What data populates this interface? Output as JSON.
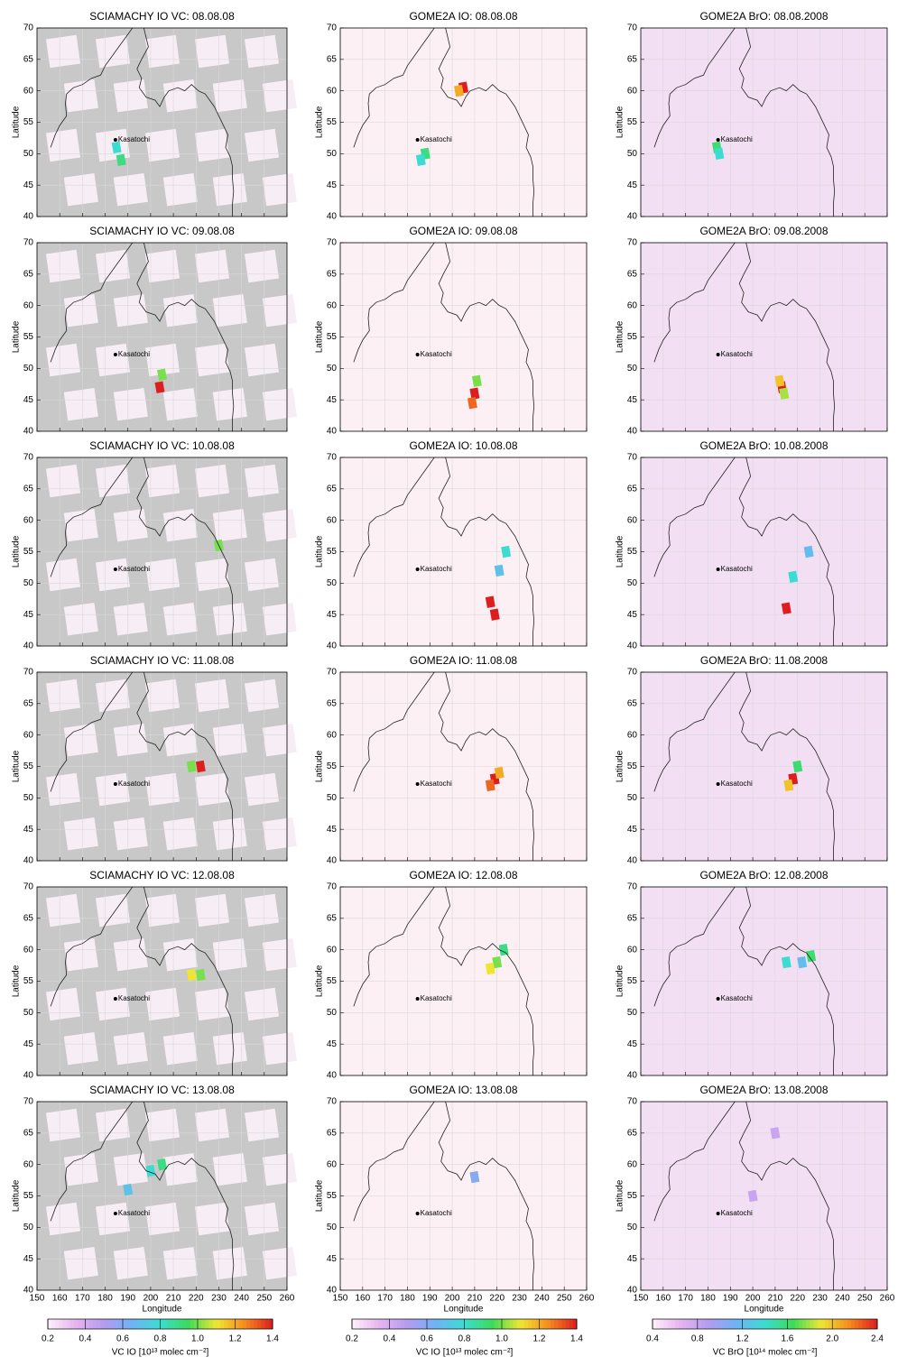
{
  "chart_data": [
    {
      "type": "map",
      "title": "SCIAMACHY IO VC: 08.08.08",
      "ylabel": "Latitude",
      "annotation": "Kasatochi",
      "background": "#c8c8c8",
      "xlim": [
        150,
        260
      ],
      "ylim": [
        40,
        70
      ],
      "xticks": [
        150,
        160,
        170,
        180,
        190,
        200,
        210,
        220,
        230,
        240,
        250,
        260
      ],
      "yticks": [
        40,
        45,
        50,
        55,
        60,
        65,
        70
      ],
      "hotspots": {
        "x": [
          185,
          187
        ],
        "y": [
          51,
          49
        ],
        "values": [
          0.8,
          0.9
        ]
      }
    },
    {
      "type": "map",
      "title": "GOME2A IO: 08.08.08",
      "ylabel": "Latitude",
      "annotation": "Kasatochi",
      "background": "#fdf0f4",
      "xlim": [
        150,
        260
      ],
      "ylim": [
        40,
        70
      ],
      "xticks": [
        150,
        160,
        170,
        180,
        190,
        200,
        210,
        220,
        230,
        240,
        250,
        260
      ],
      "yticks": [
        40,
        45,
        50,
        55,
        60,
        65,
        70
      ],
      "hotspots": {
        "x": [
          188,
          186,
          205,
          203
        ],
        "y": [
          50,
          49,
          60.5,
          60
        ],
        "values": [
          0.9,
          0.8,
          1.4,
          1.2
        ]
      }
    },
    {
      "type": "map",
      "title": "GOME2A BrO: 08.08.2008",
      "ylabel": "Latitude",
      "annotation": "Kasatochi",
      "background": "#f3dff3",
      "xlim": [
        150,
        260
      ],
      "ylim": [
        40,
        70
      ],
      "xticks": [
        150,
        160,
        170,
        180,
        190,
        200,
        210,
        220,
        230,
        240,
        250,
        260
      ],
      "yticks": [
        40,
        45,
        50,
        55,
        60,
        65,
        70
      ],
      "hotspots": {
        "x": [
          184,
          185
        ],
        "y": [
          51,
          50
        ],
        "values": [
          1.6,
          1.4
        ]
      }
    },
    {
      "type": "map",
      "title": "SCIAMACHY IO VC: 09.08.08",
      "ylabel": "Latitude",
      "annotation": "Kasatochi",
      "background": "#c8c8c8",
      "xlim": [
        150,
        260
      ],
      "ylim": [
        40,
        70
      ],
      "xticks": [
        150,
        160,
        170,
        180,
        190,
        200,
        210,
        220,
        230,
        240,
        250,
        260
      ],
      "yticks": [
        40,
        45,
        50,
        55,
        60,
        65,
        70
      ],
      "hotspots": {
        "x": [
          204,
          205
        ],
        "y": [
          47,
          49
        ],
        "values": [
          1.4,
          1.0
        ]
      }
    },
    {
      "type": "map",
      "title": "GOME2A IO: 09.08.08",
      "ylabel": "Latitude",
      "annotation": "Kasatochi",
      "background": "#fdf0f4",
      "xlim": [
        150,
        260
      ],
      "ylim": [
        40,
        70
      ],
      "xticks": [
        150,
        160,
        170,
        180,
        190,
        200,
        210,
        220,
        230,
        240,
        250,
        260
      ],
      "yticks": [
        40,
        45,
        50,
        55,
        60,
        65,
        70
      ],
      "hotspots": {
        "x": [
          210,
          211,
          209
        ],
        "y": [
          46,
          48,
          44.5
        ],
        "values": [
          1.4,
          1.0,
          1.3
        ]
      }
    },
    {
      "type": "map",
      "title": "GOME2A BrO: 09.08.2008",
      "ylabel": "Latitude",
      "annotation": "Kasatochi",
      "background": "#f3dff3",
      "xlim": [
        150,
        260
      ],
      "ylim": [
        40,
        70
      ],
      "xticks": [
        150,
        160,
        170,
        180,
        190,
        200,
        210,
        220,
        230,
        240,
        250,
        260
      ],
      "yticks": [
        40,
        45,
        50,
        55,
        60,
        65,
        70
      ],
      "hotspots": {
        "x": [
          213,
          212,
          214
        ],
        "y": [
          47,
          48,
          46
        ],
        "values": [
          2.4,
          2.0,
          1.8
        ]
      }
    },
    {
      "type": "map",
      "title": "SCIAMACHY IO VC: 10.08.08",
      "ylabel": "Latitude",
      "annotation": "Kasatochi",
      "background": "#c8c8c8",
      "xlim": [
        150,
        260
      ],
      "ylim": [
        40,
        70
      ],
      "xticks": [
        150,
        160,
        170,
        180,
        190,
        200,
        210,
        220,
        230,
        240,
        250,
        260
      ],
      "yticks": [
        40,
        45,
        50,
        55,
        60,
        65,
        70
      ],
      "hotspots": {
        "x": [
          230
        ],
        "y": [
          56
        ],
        "values": [
          1.0
        ]
      }
    },
    {
      "type": "map",
      "title": "GOME2A IO: 10.08.08",
      "ylabel": "Latitude",
      "annotation": "Kasatochi",
      "background": "#fdf0f4",
      "xlim": [
        150,
        260
      ],
      "ylim": [
        40,
        70
      ],
      "xticks": [
        150,
        160,
        170,
        180,
        190,
        200,
        210,
        220,
        230,
        240,
        250,
        260
      ],
      "yticks": [
        40,
        45,
        50,
        55,
        60,
        65,
        70
      ],
      "hotspots": {
        "x": [
          217,
          219,
          224,
          221
        ],
        "y": [
          47,
          45,
          55,
          52
        ],
        "values": [
          1.4,
          1.4,
          0.8,
          0.7
        ]
      }
    },
    {
      "type": "map",
      "title": "GOME2A BrO: 10.08.2008",
      "ylabel": "Latitude",
      "annotation": "Kasatochi",
      "background": "#f3dff3",
      "xlim": [
        150,
        260
      ],
      "ylim": [
        40,
        70
      ],
      "xticks": [
        150,
        160,
        170,
        180,
        190,
        200,
        210,
        220,
        230,
        240,
        250,
        260
      ],
      "yticks": [
        40,
        45,
        50,
        55,
        60,
        65,
        70
      ],
      "hotspots": {
        "x": [
          215,
          218,
          225
        ],
        "y": [
          46,
          51,
          55
        ],
        "values": [
          2.4,
          1.4,
          1.2
        ]
      }
    },
    {
      "type": "map",
      "title": "SCIAMACHY IO VC: 11.08.08",
      "ylabel": "Latitude",
      "annotation": "Kasatochi",
      "background": "#c8c8c8",
      "xlim": [
        150,
        260
      ],
      "ylim": [
        40,
        70
      ],
      "xticks": [
        150,
        160,
        170,
        180,
        190,
        200,
        210,
        220,
        230,
        240,
        250,
        260
      ],
      "yticks": [
        40,
        45,
        50,
        55,
        60,
        65,
        70
      ],
      "hotspots": {
        "x": [
          222,
          218
        ],
        "y": [
          55,
          55
        ],
        "values": [
          1.4,
          1.0
        ]
      }
    },
    {
      "type": "map",
      "title": "GOME2A IO: 11.08.08",
      "ylabel": "Latitude",
      "annotation": "Kasatochi",
      "background": "#fdf0f4",
      "xlim": [
        150,
        260
      ],
      "ylim": [
        40,
        70
      ],
      "xticks": [
        150,
        160,
        170,
        180,
        190,
        200,
        210,
        220,
        230,
        240,
        250,
        260
      ],
      "yticks": [
        40,
        45,
        50,
        55,
        60,
        65,
        70
      ],
      "hotspots": {
        "x": [
          219,
          217,
          221
        ],
        "y": [
          53,
          52,
          54
        ],
        "values": [
          1.4,
          1.3,
          1.2
        ]
      }
    },
    {
      "type": "map",
      "title": "GOME2A BrO: 11.08.2008",
      "ylabel": "Latitude",
      "annotation": "Kasatochi",
      "background": "#f3dff3",
      "xlim": [
        150,
        260
      ],
      "ylim": [
        40,
        70
      ],
      "xticks": [
        150,
        160,
        170,
        180,
        190,
        200,
        210,
        220,
        230,
        240,
        250,
        260
      ],
      "yticks": [
        40,
        45,
        50,
        55,
        60,
        65,
        70
      ],
      "hotspots": {
        "x": [
          218,
          216,
          220
        ],
        "y": [
          53,
          52,
          55
        ],
        "values": [
          2.4,
          2.0,
          1.6
        ]
      }
    },
    {
      "type": "map",
      "title": "SCIAMACHY IO VC: 12.08.08",
      "ylabel": "Latitude",
      "annotation": "Kasatochi",
      "background": "#c8c8c8",
      "xlim": [
        150,
        260
      ],
      "ylim": [
        40,
        70
      ],
      "xticks": [
        150,
        160,
        170,
        180,
        190,
        200,
        210,
        220,
        230,
        240,
        250,
        260
      ],
      "yticks": [
        40,
        45,
        50,
        55,
        60,
        65,
        70
      ],
      "hotspots": {
        "x": [
          218,
          222
        ],
        "y": [
          56,
          56
        ],
        "values": [
          1.1,
          1.0
        ]
      }
    },
    {
      "type": "map",
      "title": "GOME2A IO: 12.08.08",
      "ylabel": "Latitude",
      "annotation": "Kasatochi",
      "background": "#fdf0f4",
      "xlim": [
        150,
        260
      ],
      "ylim": [
        40,
        70
      ],
      "xticks": [
        150,
        160,
        170,
        180,
        190,
        200,
        210,
        220,
        230,
        240,
        250,
        260
      ],
      "yticks": [
        40,
        45,
        50,
        55,
        60,
        65,
        70
      ],
      "hotspots": {
        "x": [
          220,
          223,
          217
        ],
        "y": [
          58,
          60,
          57
        ],
        "values": [
          1.0,
          0.9,
          1.1
        ]
      }
    },
    {
      "type": "map",
      "title": "GOME2A BrO: 12.08.2008",
      "ylabel": "Latitude",
      "annotation": "Kasatochi",
      "background": "#f3dff3",
      "xlim": [
        150,
        260
      ],
      "ylim": [
        40,
        70
      ],
      "xticks": [
        150,
        160,
        170,
        180,
        190,
        200,
        210,
        220,
        230,
        240,
        250,
        260
      ],
      "yticks": [
        40,
        45,
        50,
        55,
        60,
        65,
        70
      ],
      "hotspots": {
        "x": [
          215,
          222,
          226
        ],
        "y": [
          58,
          58,
          59
        ],
        "values": [
          1.4,
          1.2,
          1.6
        ]
      }
    },
    {
      "type": "map",
      "title": "SCIAMACHY IO VC: 13.08.08",
      "ylabel": "Latitude",
      "xlabel": "Longitude",
      "annotation": "Kasatochi",
      "background": "#c8c8c8",
      "xlim": [
        150,
        260
      ],
      "ylim": [
        40,
        70
      ],
      "xticks": [
        150,
        160,
        170,
        180,
        190,
        200,
        210,
        220,
        230,
        240,
        250,
        260
      ],
      "yticks": [
        40,
        45,
        50,
        55,
        60,
        65,
        70
      ],
      "hotspots": {
        "x": [
          200,
          205,
          190
        ],
        "y": [
          59,
          60,
          56
        ],
        "values": [
          0.8,
          0.9,
          0.7
        ]
      }
    },
    {
      "type": "map",
      "title": "GOME2A IO: 13.08.08",
      "ylabel": "Latitude",
      "xlabel": "Longitude",
      "annotation": "Kasatochi",
      "background": "#fdf0f4",
      "xlim": [
        150,
        260
      ],
      "ylim": [
        40,
        70
      ],
      "xticks": [
        150,
        160,
        170,
        180,
        190,
        200,
        210,
        220,
        230,
        240,
        250,
        260
      ],
      "yticks": [
        40,
        45,
        50,
        55,
        60,
        65,
        70
      ],
      "hotspots": {
        "x": [
          210
        ],
        "y": [
          58
        ],
        "values": [
          0.6
        ]
      }
    },
    {
      "type": "map",
      "title": "GOME2A BrO: 13.08.2008",
      "ylabel": "Latitude",
      "xlabel": "Longitude",
      "annotation": "Kasatochi",
      "background": "#f3dff3",
      "xlim": [
        150,
        260
      ],
      "ylim": [
        40,
        70
      ],
      "xticks": [
        150,
        160,
        170,
        180,
        190,
        200,
        210,
        220,
        230,
        240,
        250,
        260
      ],
      "yticks": [
        40,
        45,
        50,
        55,
        60,
        65,
        70
      ],
      "hotspots": {
        "x": [
          200,
          210
        ],
        "y": [
          55,
          65
        ],
        "values": [
          0.8,
          0.8
        ]
      }
    },
    {
      "type": "colorbar",
      "label": "VC IO [10¹³ molec cm⁻²]",
      "lim": [
        0.2,
        1.4
      ],
      "ticks": [
        0.2,
        0.4,
        0.6,
        0.8,
        {
          "value": 1,
          "label": "1.0"
        },
        1.2,
        1.4
      ],
      "colors": [
        "#fff0fa",
        "#e6b4f0",
        "#b49bf0",
        "#6eb4f5",
        "#3cdcd2",
        "#3cdc5a",
        "#f0e632",
        "#f58c1e",
        "#dc1e1e"
      ]
    },
    {
      "type": "colorbar",
      "label": "VC IO [10¹³ molec cm⁻²]",
      "lim": [
        0.2,
        1.4
      ],
      "ticks": [
        0.2,
        0.4,
        0.6,
        0.8,
        {
          "value": 1,
          "label": "1.0"
        },
        1.2,
        1.4
      ],
      "colors": [
        "#fff0fa",
        "#e6b4f0",
        "#b49bf0",
        "#6eb4f5",
        "#3cdcd2",
        "#3cdc5a",
        "#f0e632",
        "#f58c1e",
        "#dc1e1e"
      ]
    },
    {
      "type": "colorbar",
      "label": "VC BrO [10¹⁴ molec cm⁻²]",
      "lim": [
        0.4,
        2.4
      ],
      "ticks": [
        0.4,
        0.8,
        1.2,
        1.6,
        {
          "value": 2,
          "label": "2.0"
        },
        2.4
      ],
      "colors": [
        "#fff0fa",
        "#e6b4f0",
        "#b49bf0",
        "#6eb4f5",
        "#3cdcd2",
        "#3cdc5a",
        "#f0e632",
        "#f58c1e",
        "#dc1e1e"
      ]
    }
  ]
}
